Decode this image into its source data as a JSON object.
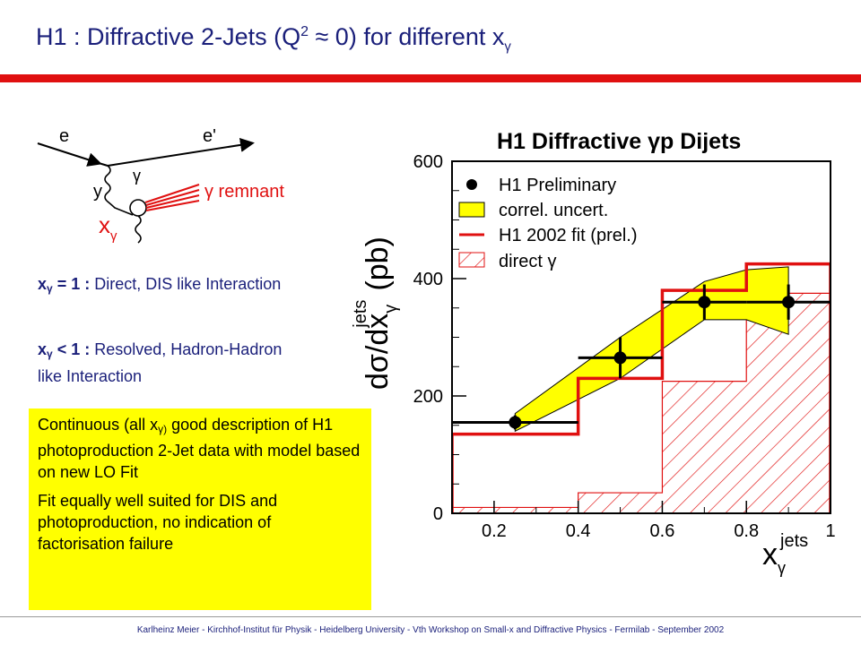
{
  "slide": {
    "title_pre": "H1 : Diffractive 2-Jets (Q",
    "title_sup": "2",
    "title_mid": " ≈ 0) for different x",
    "title_sub": "γ"
  },
  "diagram": {
    "e_in": "e",
    "e_out": "e'",
    "y": "y",
    "gamma": "γ",
    "remnant": "γ remnant",
    "x": "x",
    "x_sub": "γ"
  },
  "definitions": {
    "direct_key": "x",
    "direct_sub": "γ",
    "direct_cond": " = 1 :",
    "direct_text": " Direct, DIS like Interaction",
    "resolved_key": "x",
    "resolved_sub": "γ",
    "resolved_cond": " < 1 :",
    "resolved_text": " Resolved, Hadron-Hadron like Interaction"
  },
  "summary": {
    "p1_a": "Continuous (all x",
    "p1_sub": "γ)",
    "p1_b": " good description of H1 photoproduction 2-Jet data with model based on new LO Fit",
    "p2": "Fit equally well suited for DIS and photoproduction, no indication of factorisation failure"
  },
  "footer": "Karlheinz Meier - Kirchhof-Institut für Physik - Heidelberg University - Vth Workshop on Small-x and Diffractive Physics - Fermilab - September 2002",
  "chart_data": {
    "type": "line",
    "title": "H1 Diffractive γp Dijets",
    "ylabel": "dσ/dx",
    "ylabel_sup": "jets",
    "ylabel_sub": "γ",
    "ylabel_unit": "(pb)",
    "xlabel": "x",
    "xlabel_sup": "jets",
    "xlabel_sub": "γ",
    "xlim": [
      0.1,
      1.0
    ],
    "ylim": [
      0,
      600
    ],
    "xticks": [
      "0.2",
      "0.4",
      "0.6",
      "0.8",
      "1"
    ],
    "yticks": [
      "0",
      "200",
      "400",
      "600"
    ],
    "legend_position": "top-left",
    "legend": [
      "H1 Preliminary",
      "correl. uncert.",
      "H1 2002 fit (prel.)",
      "direct γ"
    ],
    "colors": {
      "data": "#000000",
      "uncert": "#ffff00",
      "fit": "#e01010",
      "direct": "#e01010"
    },
    "data_points": [
      {
        "x": 0.25,
        "y": 155,
        "xlo": 0.1,
        "xhi": 0.4,
        "err": 12
      },
      {
        "x": 0.5,
        "y": 265,
        "xlo": 0.4,
        "xhi": 0.6,
        "err": 35
      },
      {
        "x": 0.7,
        "y": 360,
        "xlo": 0.6,
        "xhi": 0.8,
        "err": 30
      },
      {
        "x": 0.9,
        "y": 360,
        "xlo": 0.8,
        "xhi": 1.0,
        "err": 30
      }
    ],
    "uncertainty_band": {
      "x": [
        0.25,
        0.5,
        0.7,
        0.8,
        0.9
      ],
      "upper": [
        170,
        300,
        395,
        415,
        420
      ],
      "lower": [
        140,
        230,
        330,
        330,
        305
      ]
    },
    "fit_histogram": {
      "edges": [
        0.1,
        0.4,
        0.6,
        0.8,
        1.0
      ],
      "values": [
        135,
        230,
        380,
        425
      ]
    },
    "direct_histogram": {
      "edges": [
        0.1,
        0.4,
        0.6,
        0.8,
        1.0
      ],
      "values": [
        10,
        35,
        225,
        375
      ]
    }
  }
}
